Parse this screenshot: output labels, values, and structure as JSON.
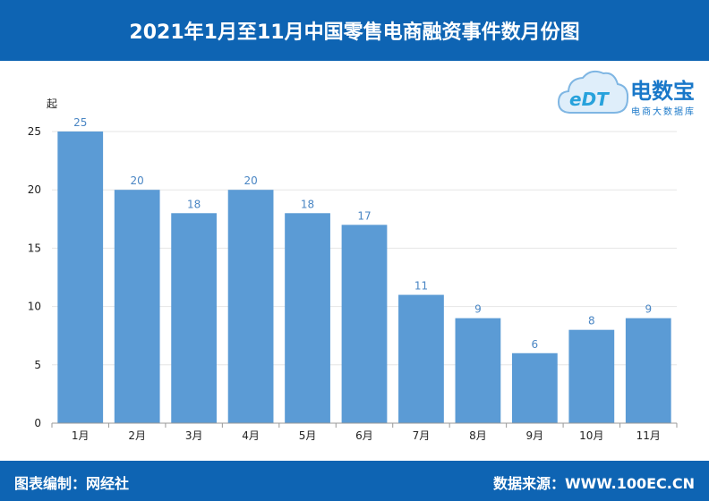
{
  "header": {
    "title": "2021年1月至11月中国零售电商融资事件数月份图"
  },
  "logo": {
    "brand": "电数宝",
    "tagline": "电商大数据库",
    "mark": "eDT"
  },
  "footer": {
    "left": "图表编制：网经社",
    "right": "数据来源：WWW.100EC.CN"
  },
  "colors": {
    "header": "#0e64b3",
    "bar": "#5b9bd5",
    "label": "#4a86c4"
  },
  "chart_data": {
    "type": "bar",
    "title": "2021年1月至11月中国零售电商融资事件数月份图",
    "ylabel": "起",
    "xlabel": "",
    "categories": [
      "1月",
      "2月",
      "3月",
      "4月",
      "5月",
      "6月",
      "7月",
      "8月",
      "9月",
      "10月",
      "11月"
    ],
    "values": [
      25,
      20,
      18,
      20,
      18,
      17,
      11,
      9,
      6,
      8,
      9
    ],
    "ylim": [
      0,
      25
    ],
    "yticks": [
      0,
      5,
      10,
      15,
      20,
      25
    ],
    "grid": true,
    "legend": "none"
  }
}
